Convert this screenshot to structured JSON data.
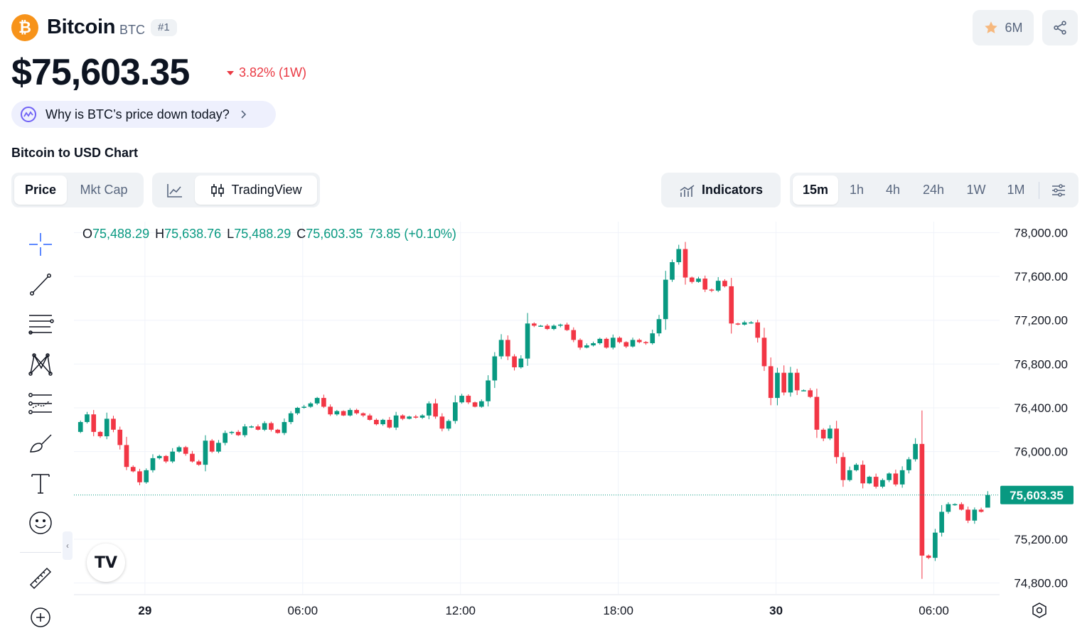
{
  "coin": {
    "name": "Bitcoin",
    "symbol": "BTC",
    "rank": "#1",
    "logo_glyph": "₿",
    "price": "$75,603.35",
    "change": "3.82% (1W)",
    "change_color": "#ea3943",
    "watchlist_count": "6M"
  },
  "why_link": "Why is BTC’s price down today?",
  "section_title": "Bitcoin to USD Chart",
  "tabs": {
    "metric": [
      {
        "label": "Price",
        "active": true
      },
      {
        "label": "Mkt Cap",
        "active": false
      }
    ],
    "chart_type": {
      "tradingview_label": "TradingView"
    },
    "indicators_label": "Indicators",
    "ranges": [
      {
        "label": "15m",
        "active": true
      },
      {
        "label": "1h",
        "active": false
      },
      {
        "label": "4h",
        "active": false
      },
      {
        "label": "24h",
        "active": false
      },
      {
        "label": "1W",
        "active": false
      },
      {
        "label": "1M",
        "active": false
      }
    ]
  },
  "icons": {
    "star": "star-icon",
    "share": "share-icon",
    "ai": "ai-sparkle-icon",
    "chevron": "chevron-right-icon",
    "line_chart": "line-chart-icon",
    "candles": "candlestick-icon",
    "indicators": "indicators-icon",
    "settings": "sliders-icon",
    "gear": "gear-icon"
  },
  "colors": {
    "up": "#089981",
    "down": "#f23645",
    "accent_star": "#f6b87e"
  },
  "ohlc": {
    "O": "75,488.29",
    "H": "75,638.76",
    "L": "75,488.29",
    "C": "75,603.35",
    "change": "73.85 (+0.10%)"
  },
  "tv_logo": "TV",
  "chart_data": {
    "type": "candlestick",
    "interval": "15m",
    "y_ticks": [
      78000,
      77600,
      77200,
      76800,
      76400,
      76000,
      75200,
      74800
    ],
    "y_tick_labels": [
      "78,000.00",
      "77,600.00",
      "77,200.00",
      "76,800.00",
      "76,400.00",
      "76,000.00",
      "75,200.00",
      "74,800.00"
    ],
    "current_price": 75603.35,
    "current_price_label": "75,603.35",
    "x_ticks": [
      "29",
      "06:00",
      "12:00",
      "18:00",
      "30",
      "06:00"
    ],
    "x_tick_hours": [
      0,
      6,
      12,
      18,
      24,
      30
    ],
    "x_range_hours": [
      -2.7,
      32.5
    ],
    "y_range": [
      74700,
      78100
    ],
    "start_hour": -2.45,
    "candle_hours": 0.25,
    "closes": [
      76270,
      76340,
      76180,
      76140,
      76300,
      76200,
      76060,
      75860,
      75820,
      75720,
      75830,
      75940,
      75960,
      75910,
      76000,
      76040,
      75980,
      75910,
      75880,
      76100,
      76000,
      76080,
      76170,
      76180,
      76150,
      76230,
      76230,
      76200,
      76260,
      76200,
      76170,
      76270,
      76350,
      76400,
      76410,
      76440,
      76490,
      76410,
      76340,
      76370,
      76330,
      76380,
      76350,
      76330,
      76290,
      76250,
      76290,
      76220,
      76330,
      76300,
      76320,
      76310,
      76330,
      76440,
      76320,
      76210,
      76280,
      76450,
      76510,
      76450,
      76410,
      76460,
      76650,
      76870,
      77020,
      76870,
      76770,
      76850,
      77170,
      77150,
      77150,
      77120,
      77150,
      77160,
      77110,
      77020,
      76950,
      76970,
      76990,
      77030,
      76950,
      77040,
      77000,
      76960,
      77020,
      77000,
      76990,
      77080,
      77210,
      77570,
      77730,
      77850,
      77590,
      77550,
      77580,
      77480,
      77470,
      77560,
      77510,
      77170,
      77160,
      77180,
      77180,
      77040,
      76780,
      76490,
      76720,
      76540,
      76720,
      76560,
      76560,
      76500,
      76200,
      76120,
      76210,
      75950,
      75740,
      75830,
      75880,
      75710,
      75770,
      75680,
      75740,
      75800,
      75700,
      75830,
      75930,
      76070,
      75050,
      75030,
      75260,
      75450,
      75520,
      75520,
      75470,
      75370,
      75470,
      75450,
      75590
    ],
    "last_open": 75488.29,
    "last_high": 75638.76,
    "last_low": 75488.29,
    "last_close": 75603.35
  }
}
